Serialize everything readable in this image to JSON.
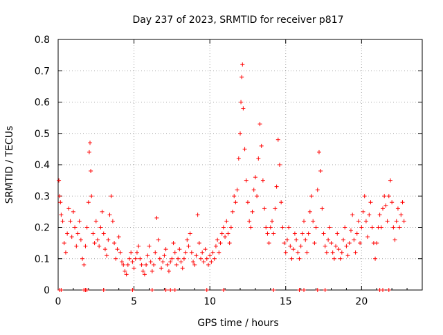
{
  "chart_data": {
    "type": "scatter",
    "title": "Day 237 of 2023, SRMTID for receiver p817",
    "xlabel": "GPS time / hours",
    "ylabel": "SRMTID / TECUs",
    "xlim": [
      0,
      24
    ],
    "ylim": [
      0,
      0.8
    ],
    "xticks": [
      0,
      5,
      10,
      15,
      20
    ],
    "xtick_labels": [
      "0",
      "5",
      "10",
      "15",
      "20"
    ],
    "yticks": [
      0,
      0.1,
      0.2,
      0.3,
      0.4,
      0.5,
      0.6,
      0.7,
      0.8
    ],
    "ytick_labels": [
      "0",
      "0.1",
      "0.2",
      "0.3",
      "0.4",
      "0.5",
      "0.6",
      "0.7",
      "0.8"
    ],
    "grid": true,
    "marker": "plus",
    "color": "#ff0000",
    "series": [
      {
        "name": "SRMTID",
        "points": [
          [
            0.05,
            0.35
          ],
          [
            0.1,
            0.3
          ],
          [
            0.15,
            0.28
          ],
          [
            0.2,
            0.24
          ],
          [
            0.3,
            0.22
          ],
          [
            0.4,
            0.15
          ],
          [
            0.5,
            0.12
          ],
          [
            0.6,
            0.18
          ],
          [
            0.7,
            0.26
          ],
          [
            0.8,
            0.22
          ],
          [
            0.9,
            0.17
          ],
          [
            1.0,
            0.25
          ],
          [
            1.1,
            0.2
          ],
          [
            1.2,
            0.14
          ],
          [
            1.3,
            0.18
          ],
          [
            1.4,
            0.22
          ],
          [
            1.5,
            0.16
          ],
          [
            1.6,
            0.1
          ],
          [
            1.7,
            0.08
          ],
          [
            1.8,
            0.14
          ],
          [
            1.9,
            0.2
          ],
          [
            2.0,
            0.28
          ],
          [
            2.05,
            0.44
          ],
          [
            2.1,
            0.47
          ],
          [
            2.15,
            0.38
          ],
          [
            2.2,
            0.3
          ],
          [
            2.3,
            0.18
          ],
          [
            2.4,
            0.15
          ],
          [
            2.5,
            0.22
          ],
          [
            2.6,
            0.16
          ],
          [
            2.7,
            0.14
          ],
          [
            2.8,
            0.2
          ],
          [
            2.9,
            0.25
          ],
          [
            3.0,
            0.18
          ],
          [
            3.1,
            0.13
          ],
          [
            3.2,
            0.11
          ],
          [
            3.3,
            0.16
          ],
          [
            3.4,
            0.24
          ],
          [
            3.5,
            0.3
          ],
          [
            3.6,
            0.22
          ],
          [
            3.7,
            0.15
          ],
          [
            3.8,
            0.1
          ],
          [
            3.9,
            0.13
          ],
          [
            4.0,
            0.17
          ],
          [
            4.1,
            0.12
          ],
          [
            4.2,
            0.09
          ],
          [
            4.3,
            0.08
          ],
          [
            4.4,
            0.06
          ],
          [
            4.5,
            0.05
          ],
          [
            4.6,
            0.08
          ],
          [
            4.7,
            0.1
          ],
          [
            4.8,
            0.12
          ],
          [
            4.9,
            0.09
          ],
          [
            5.0,
            0.07
          ],
          [
            5.1,
            0.1
          ],
          [
            5.2,
            0.12
          ],
          [
            5.3,
            0.14
          ],
          [
            5.4,
            0.1
          ],
          [
            5.5,
            0.08
          ],
          [
            5.6,
            0.06
          ],
          [
            5.7,
            0.05
          ],
          [
            5.8,
            0.08
          ],
          [
            5.9,
            0.11
          ],
          [
            6.0,
            0.14
          ],
          [
            6.1,
            0.09
          ],
          [
            6.2,
            0.06
          ],
          [
            6.3,
            0.08
          ],
          [
            6.4,
            0.12
          ],
          [
            6.5,
            0.23
          ],
          [
            6.6,
            0.16
          ],
          [
            6.7,
            0.1
          ],
          [
            6.8,
            0.07
          ],
          [
            6.9,
            0.09
          ],
          [
            7.0,
            0.11
          ],
          [
            7.1,
            0.13
          ],
          [
            7.2,
            0.08
          ],
          [
            7.3,
            0.06
          ],
          [
            7.4,
            0.09
          ],
          [
            7.5,
            0.1
          ],
          [
            7.6,
            0.15
          ],
          [
            7.7,
            0.12
          ],
          [
            7.8,
            0.08
          ],
          [
            7.9,
            0.1
          ],
          [
            8.0,
            0.13
          ],
          [
            8.1,
            0.09
          ],
          [
            8.2,
            0.07
          ],
          [
            8.3,
            0.1
          ],
          [
            8.4,
            0.12
          ],
          [
            8.5,
            0.16
          ],
          [
            8.6,
            0.14
          ],
          [
            8.7,
            0.18
          ],
          [
            8.8,
            0.12
          ],
          [
            8.9,
            0.09
          ],
          [
            9.0,
            0.08
          ],
          [
            9.1,
            0.11
          ],
          [
            9.2,
            0.24
          ],
          [
            9.3,
            0.15
          ],
          [
            9.4,
            0.1
          ],
          [
            9.5,
            0.12
          ],
          [
            9.6,
            0.09
          ],
          [
            9.7,
            0.13
          ],
          [
            9.8,
            0.1
          ],
          [
            9.9,
            0.08
          ],
          [
            10.0,
            0.11
          ],
          [
            10.1,
            0.09
          ],
          [
            10.2,
            0.12
          ],
          [
            10.3,
            0.1
          ],
          [
            10.4,
            0.14
          ],
          [
            10.5,
            0.16
          ],
          [
            10.6,
            0.12
          ],
          [
            10.7,
            0.15
          ],
          [
            10.8,
            0.18
          ],
          [
            10.9,
            0.2
          ],
          [
            11.0,
            0.17
          ],
          [
            11.1,
            0.22
          ],
          [
            11.2,
            0.18
          ],
          [
            11.3,
            0.15
          ],
          [
            11.4,
            0.2
          ],
          [
            11.5,
            0.25
          ],
          [
            11.6,
            0.3
          ],
          [
            11.7,
            0.28
          ],
          [
            11.8,
            0.32
          ],
          [
            11.9,
            0.42
          ],
          [
            12.0,
            0.5
          ],
          [
            12.05,
            0.6
          ],
          [
            12.1,
            0.68
          ],
          [
            12.15,
            0.72
          ],
          [
            12.2,
            0.58
          ],
          [
            12.3,
            0.45
          ],
          [
            12.4,
            0.35
          ],
          [
            12.5,
            0.28
          ],
          [
            12.6,
            0.22
          ],
          [
            12.7,
            0.2
          ],
          [
            12.8,
            0.25
          ],
          [
            12.9,
            0.32
          ],
          [
            13.0,
            0.36
          ],
          [
            13.1,
            0.3
          ],
          [
            13.2,
            0.42
          ],
          [
            13.3,
            0.53
          ],
          [
            13.4,
            0.46
          ],
          [
            13.5,
            0.35
          ],
          [
            13.6,
            0.26
          ],
          [
            13.7,
            0.2
          ],
          [
            13.8,
            0.18
          ],
          [
            13.9,
            0.15
          ],
          [
            14.0,
            0.2
          ],
          [
            14.1,
            0.22
          ],
          [
            14.2,
            0.18
          ],
          [
            14.3,
            0.26
          ],
          [
            14.4,
            0.33
          ],
          [
            14.5,
            0.48
          ],
          [
            14.6,
            0.4
          ],
          [
            14.7,
            0.28
          ],
          [
            14.8,
            0.2
          ],
          [
            14.9,
            0.15
          ],
          [
            15.0,
            0.12
          ],
          [
            15.1,
            0.16
          ],
          [
            15.2,
            0.2
          ],
          [
            15.3,
            0.14
          ],
          [
            15.4,
            0.1
          ],
          [
            15.5,
            0.13
          ],
          [
            15.6,
            0.18
          ],
          [
            15.7,
            0.16
          ],
          [
            15.8,
            0.12
          ],
          [
            15.9,
            0.1
          ],
          [
            16.0,
            0.14
          ],
          [
            16.1,
            0.18
          ],
          [
            16.2,
            0.22
          ],
          [
            16.3,
            0.16
          ],
          [
            16.4,
            0.12
          ],
          [
            16.5,
            0.18
          ],
          [
            16.6,
            0.25
          ],
          [
            16.7,
            0.3
          ],
          [
            16.8,
            0.22
          ],
          [
            16.9,
            0.15
          ],
          [
            17.0,
            0.2
          ],
          [
            17.1,
            0.32
          ],
          [
            17.2,
            0.44
          ],
          [
            17.3,
            0.38
          ],
          [
            17.4,
            0.26
          ],
          [
            17.5,
            0.18
          ],
          [
            17.6,
            0.14
          ],
          [
            17.7,
            0.12
          ],
          [
            17.8,
            0.16
          ],
          [
            17.9,
            0.2
          ],
          [
            18.0,
            0.15
          ],
          [
            18.1,
            0.12
          ],
          [
            18.2,
            0.1
          ],
          [
            18.3,
            0.14
          ],
          [
            18.4,
            0.18
          ],
          [
            18.5,
            0.13
          ],
          [
            18.6,
            0.1
          ],
          [
            18.7,
            0.12
          ],
          [
            18.8,
            0.16
          ],
          [
            18.9,
            0.2
          ],
          [
            19.0,
            0.14
          ],
          [
            19.1,
            0.11
          ],
          [
            19.2,
            0.15
          ],
          [
            19.3,
            0.19
          ],
          [
            19.4,
            0.24
          ],
          [
            19.5,
            0.16
          ],
          [
            19.6,
            0.12
          ],
          [
            19.7,
            0.18
          ],
          [
            19.8,
            0.22
          ],
          [
            19.9,
            0.15
          ],
          [
            20.0,
            0.2
          ],
          [
            20.1,
            0.25
          ],
          [
            20.2,
            0.3
          ],
          [
            20.3,
            0.22
          ],
          [
            20.4,
            0.17
          ],
          [
            20.5,
            0.24
          ],
          [
            20.6,
            0.28
          ],
          [
            20.7,
            0.2
          ],
          [
            20.8,
            0.15
          ],
          [
            20.9,
            0.1
          ],
          [
            21.0,
            0.15
          ],
          [
            21.1,
            0.2
          ],
          [
            21.2,
            0.24
          ],
          [
            21.3,
            0.2
          ],
          [
            21.4,
            0.26
          ],
          [
            21.5,
            0.3
          ],
          [
            21.6,
            0.27
          ],
          [
            21.7,
            0.22
          ],
          [
            21.8,
            0.3
          ],
          [
            21.9,
            0.35
          ],
          [
            22.0,
            0.28
          ],
          [
            22.1,
            0.2
          ],
          [
            22.2,
            0.16
          ],
          [
            22.3,
            0.22
          ],
          [
            22.4,
            0.26
          ],
          [
            22.5,
            0.2
          ],
          [
            22.6,
            0.24
          ],
          [
            22.7,
            0.28
          ],
          [
            22.8,
            0.22
          ]
        ]
      }
    ],
    "baseline_points": [
      0.1,
      0.2,
      1.7,
      1.8,
      1.9,
      3.0,
      4.9,
      6.2,
      7.1,
      7.4,
      7.7,
      9.8,
      10.9,
      14.2,
      15.9,
      16.2,
      17.1,
      17.6,
      21.2,
      21.4,
      21.8
    ]
  }
}
